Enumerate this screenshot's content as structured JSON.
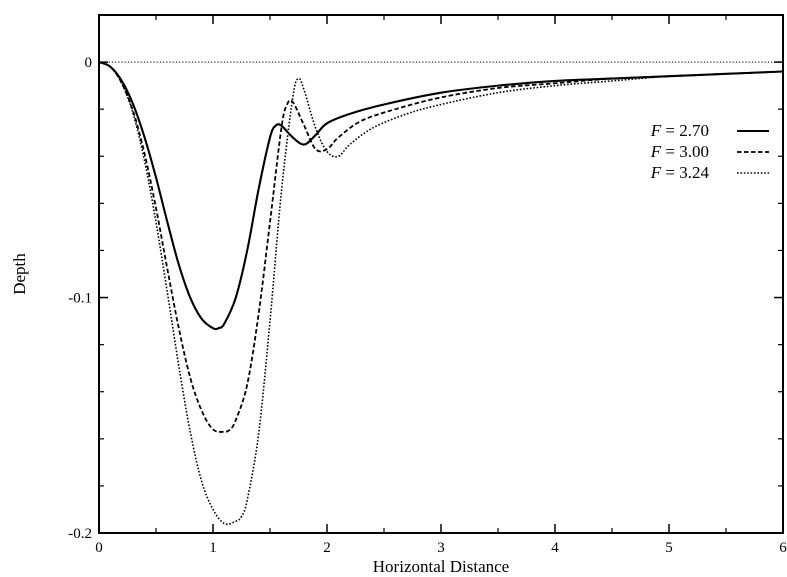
{
  "chart_data": {
    "type": "line",
    "title": "",
    "xlabel": "Horizontal Distance",
    "ylabel": "Depth",
    "xlim": [
      0,
      6
    ],
    "ylim": [
      -0.2,
      0.02
    ],
    "grid": false,
    "legend_position": "top-right",
    "x_ticks": [
      {
        "value": 0,
        "label": "0"
      },
      {
        "value": 1,
        "label": "1"
      },
      {
        "value": 2,
        "label": "2"
      },
      {
        "value": 3,
        "label": "3"
      },
      {
        "value": 4,
        "label": "4"
      },
      {
        "value": 5,
        "label": "5"
      },
      {
        "value": 6,
        "label": "6"
      }
    ],
    "y_ticks": [
      {
        "value": 0,
        "label": "0"
      },
      {
        "value": -0.1,
        "label": "-0.1"
      },
      {
        "value": -0.2,
        "label": "-0.2"
      }
    ],
    "reference_line": {
      "y": 0,
      "style": "dotted"
    },
    "series": [
      {
        "name": "F = 2.70",
        "name_italic": "F",
        "name_rest": " = 2.70",
        "style": "solid",
        "x": [
          0,
          0.1,
          0.2,
          0.3,
          0.4,
          0.5,
          0.6,
          0.7,
          0.8,
          0.9,
          1.0,
          1.05,
          1.1,
          1.2,
          1.3,
          1.4,
          1.5,
          1.55,
          1.6,
          1.7,
          1.8,
          1.9,
          2.0,
          2.2,
          2.5,
          3.0,
          3.5,
          4.0,
          4.5,
          5.0,
          5.5,
          6.0
        ],
        "y": [
          0,
          -0.002,
          -0.008,
          -0.018,
          -0.032,
          -0.049,
          -0.068,
          -0.086,
          -0.1,
          -0.109,
          -0.113,
          -0.113,
          -0.111,
          -0.1,
          -0.08,
          -0.054,
          -0.032,
          -0.027,
          -0.027,
          -0.032,
          -0.035,
          -0.031,
          -0.026,
          -0.022,
          -0.018,
          -0.013,
          -0.01,
          -0.008,
          -0.007,
          -0.006,
          -0.005,
          -0.004
        ]
      },
      {
        "name": "F = 3.00",
        "name_italic": "F",
        "name_rest": " = 3.00",
        "style": "dashed",
        "x": [
          0,
          0.1,
          0.2,
          0.3,
          0.4,
          0.5,
          0.6,
          0.7,
          0.8,
          0.9,
          1.0,
          1.1,
          1.15,
          1.2,
          1.3,
          1.4,
          1.5,
          1.6,
          1.65,
          1.7,
          1.8,
          1.9,
          2.0,
          2.1,
          2.3,
          2.6,
          3.0,
          3.5,
          4.0,
          4.5,
          5.0,
          5.5,
          6.0
        ],
        "y": [
          0,
          -0.002,
          -0.009,
          -0.021,
          -0.039,
          -0.062,
          -0.088,
          -0.113,
          -0.134,
          -0.148,
          -0.156,
          -0.157,
          -0.156,
          -0.152,
          -0.137,
          -0.107,
          -0.068,
          -0.028,
          -0.018,
          -0.017,
          -0.027,
          -0.037,
          -0.037,
          -0.032,
          -0.025,
          -0.02,
          -0.015,
          -0.011,
          -0.009,
          -0.007,
          -0.006,
          -0.005,
          -0.004
        ]
      },
      {
        "name": "F = 3.24",
        "name_italic": "F",
        "name_rest": " = 3.24",
        "style": "dotted",
        "x": [
          0,
          0.1,
          0.2,
          0.3,
          0.4,
          0.5,
          0.6,
          0.7,
          0.8,
          0.9,
          1.0,
          1.1,
          1.2,
          1.25,
          1.3,
          1.4,
          1.5,
          1.6,
          1.7,
          1.75,
          1.8,
          1.9,
          2.0,
          2.1,
          2.2,
          2.4,
          2.7,
          3.0,
          3.5,
          4.0,
          4.5,
          5.0,
          5.5,
          6.0
        ],
        "y": [
          0,
          -0.002,
          -0.009,
          -0.022,
          -0.042,
          -0.068,
          -0.098,
          -0.129,
          -0.157,
          -0.178,
          -0.19,
          -0.196,
          -0.195,
          -0.193,
          -0.186,
          -0.158,
          -0.11,
          -0.055,
          -0.015,
          -0.007,
          -0.012,
          -0.028,
          -0.038,
          -0.04,
          -0.035,
          -0.028,
          -0.022,
          -0.018,
          -0.013,
          -0.01,
          -0.008,
          -0.006,
          -0.005,
          -0.004
        ]
      }
    ]
  }
}
